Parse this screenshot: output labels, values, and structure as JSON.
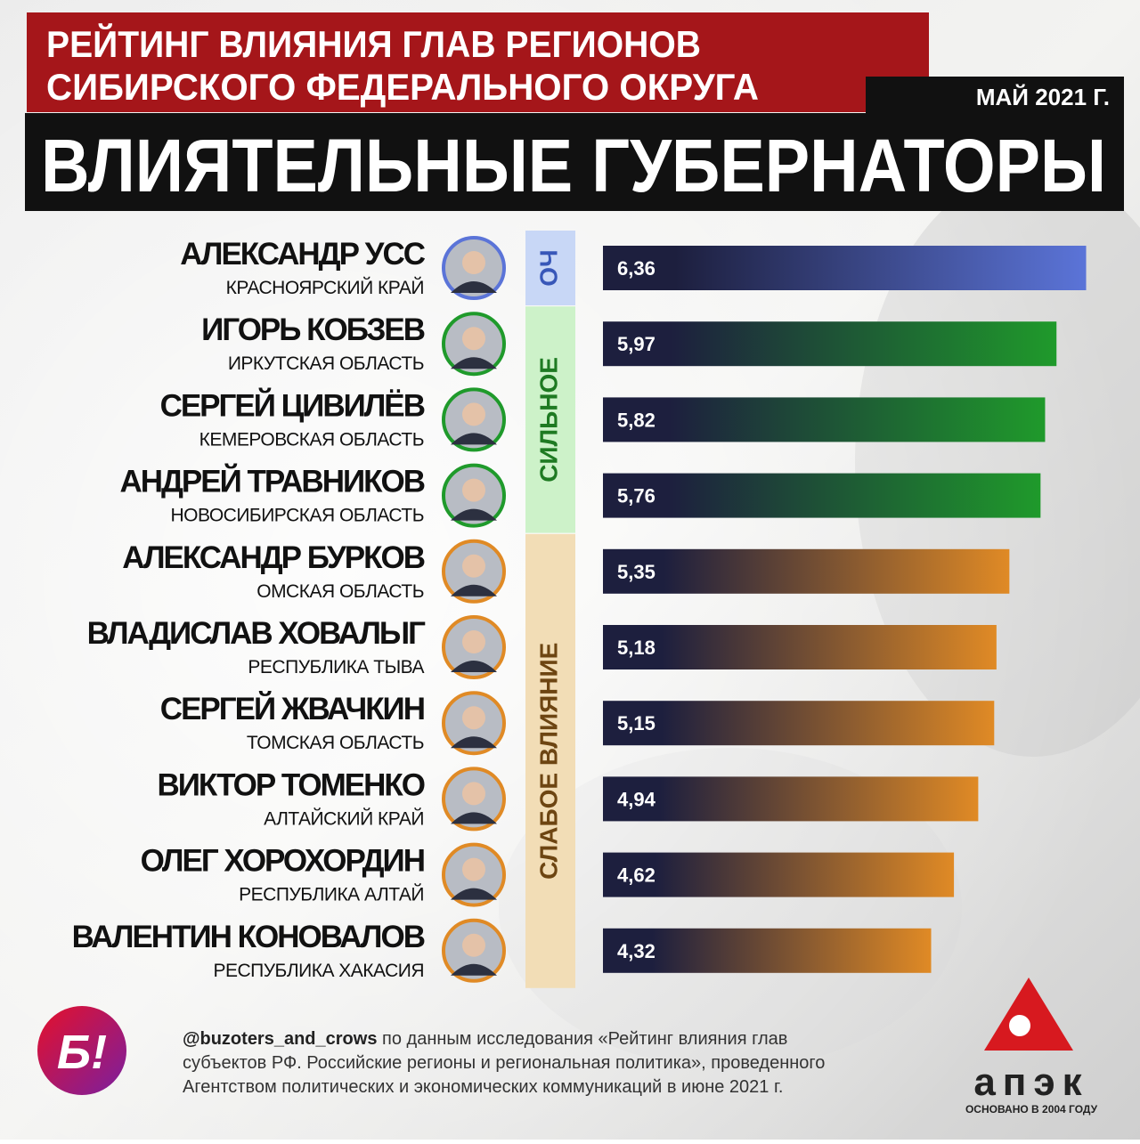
{
  "chart_data": {
    "type": "bar",
    "title": [
      "РЕЙТИНГ ВЛИЯНИЯ ГЛАВ РЕГИОНОВ",
      "СИБИРСКОГО  ФЕДЕРАЛЬНОГО ОКРУГА"
    ],
    "date": "МАЙ 2021 Г.",
    "subtitle": "ВЛИЯТЕЛЬНЫЕ ГУБЕРНАТОРЫ",
    "categories": [
      "АЛЕКСАНДР УСС",
      "ИГОРЬ КОБЗЕВ",
      "СЕРГЕЙ ЦИВИЛЁВ",
      "АНДРЕЙ ТРАВНИКОВ",
      "АЛЕКСАНДР БУРКОВ",
      "ВЛАДИСЛАВ ХОВАЛЫГ",
      "СЕРГЕЙ ЖВАЧКИН",
      "ВИКТОР ТОМЕНКО",
      "ОЛЕГ ХОРОХОРДИН",
      "ВАЛЕНТИН КОНОВАЛОВ"
    ],
    "regions": [
      "КРАСНОЯРСКИЙ КРАЙ",
      "ИРКУТСКАЯ ОБЛАСТЬ",
      "КЕМЕРОВСКАЯ ОБЛАСТЬ",
      "НОВОСИБИРСКАЯ ОБЛАСТЬ",
      "ОМСКАЯ ОБЛАСТЬ",
      "РЕСПУБЛИКА ТЫВА",
      "ТОМСКАЯ ОБЛАСТЬ",
      "АЛТАЙСКИЙ КРАЙ",
      "РЕСПУБЛИКА АЛТАЙ",
      "РЕСПУБЛИКА ХАКАСИЯ"
    ],
    "series": [
      {
        "name": "ОЧ",
        "color": "#5b74d8",
        "values": [
          6.36,
          null,
          null,
          null,
          null,
          null,
          null,
          null,
          null,
          null
        ],
        "value_labels": [
          "6,36",
          null,
          null,
          null,
          null,
          null,
          null,
          null,
          null,
          null
        ]
      },
      {
        "name": "СИЛЬНОЕ",
        "color": "#1f9a2b",
        "values": [
          null,
          5.97,
          5.82,
          5.76,
          null,
          null,
          null,
          null,
          null,
          null
        ],
        "value_labels": [
          null,
          "5,97",
          "5,82",
          "5,76",
          null,
          null,
          null,
          null,
          null,
          null
        ]
      },
      {
        "name": "СЛАБОЕ ВЛИЯНИЕ",
        "color": "#e08a25",
        "values": [
          null,
          null,
          null,
          null,
          5.35,
          5.18,
          5.15,
          4.94,
          4.62,
          4.32
        ],
        "value_labels": [
          null,
          null,
          null,
          null,
          "5,35",
          "5,18",
          "5,15",
          "4,94",
          "4,62",
          "4,32"
        ]
      }
    ],
    "xlim": [
      0,
      7
    ]
  },
  "footer": {
    "handle": "@buzoters_and_crows",
    "lines": [
      "по данным исследования «Рейтинг влияния глав",
      "субъектов РФ. Российские регионы и региональная политика», проведенного",
      "Агентством политических и экономических коммуникаций в июне 2021 г."
    ],
    "logo_left": "Б!",
    "logo_right": "апэк",
    "logo_right_sub": "ОСНОВАНО В 2004 ГОДУ"
  }
}
